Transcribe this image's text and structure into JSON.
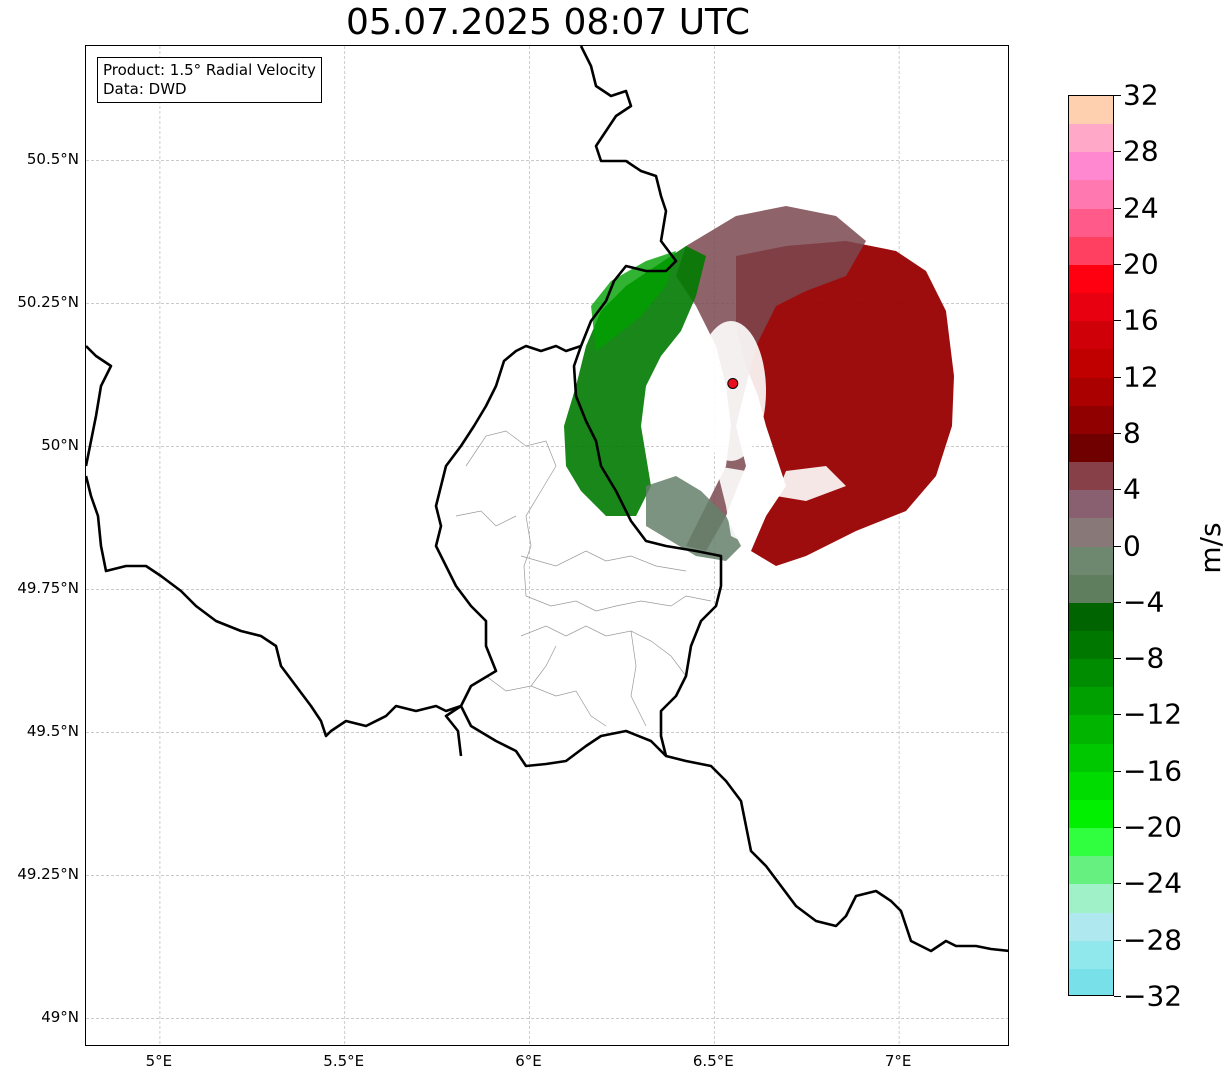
{
  "title": "05.07.2025 08:07 UTC",
  "infobox": {
    "product": "Product: 1.5° Radial Velocity",
    "data": "Data: DWD"
  },
  "map": {
    "lat_labels": [
      "50.5°N",
      "50.25°N",
      "50°N",
      "49.75°N",
      "49.5°N",
      "49.25°N",
      "49°N"
    ],
    "lon_labels": [
      "5°E",
      "5.5°E",
      "6°E",
      "6.5°E",
      "7°E"
    ],
    "lat_values": [
      50.5,
      50.25,
      50.0,
      49.75,
      49.5,
      49.25,
      49.0
    ],
    "lon_values": [
      5.0,
      5.5,
      6.0,
      6.5,
      7.0
    ],
    "extent": {
      "lon_min": 4.8,
      "lon_max": 7.3,
      "lat_min": 48.95,
      "lat_max": 50.7
    },
    "radar_site": {
      "lon": 6.55,
      "lat": 50.11,
      "color": "#e8101a"
    },
    "gridlines": true,
    "border_color": "#000000",
    "admin_line_color": "#999999"
  },
  "colorbar": {
    "unit": "m/s",
    "ticks": [
      "32",
      "28",
      "24",
      "20",
      "16",
      "12",
      "8",
      "4",
      "0",
      "−4",
      "−8",
      "−12",
      "−16",
      "−20",
      "−24",
      "−28",
      "−32"
    ],
    "tick_values": [
      32,
      28,
      24,
      20,
      16,
      12,
      8,
      4,
      0,
      -4,
      -8,
      -12,
      -16,
      -20,
      -24,
      -28,
      -32
    ],
    "min": -32,
    "max": 32,
    "colors_top_to_bottom": [
      "#ffd0b0",
      "#ffa8c8",
      "#ff88d0",
      "#ff78b0",
      "#ff5a8a",
      "#ff4060",
      "#ff0010",
      "#e80010",
      "#d00008",
      "#c00000",
      "#aa0000",
      "#900000",
      "#700000",
      "#884048",
      "#886070",
      "#887878",
      "#6e8870",
      "#5e7e5e",
      "#006400",
      "#007800",
      "#008c00",
      "#00a000",
      "#00b400",
      "#00c800",
      "#00dc00",
      "#00f000",
      "#30ff40",
      "#66f080",
      "#a0f0c8",
      "#b0e8f0",
      "#90e8ec",
      "#78e0e8"
    ]
  }
}
